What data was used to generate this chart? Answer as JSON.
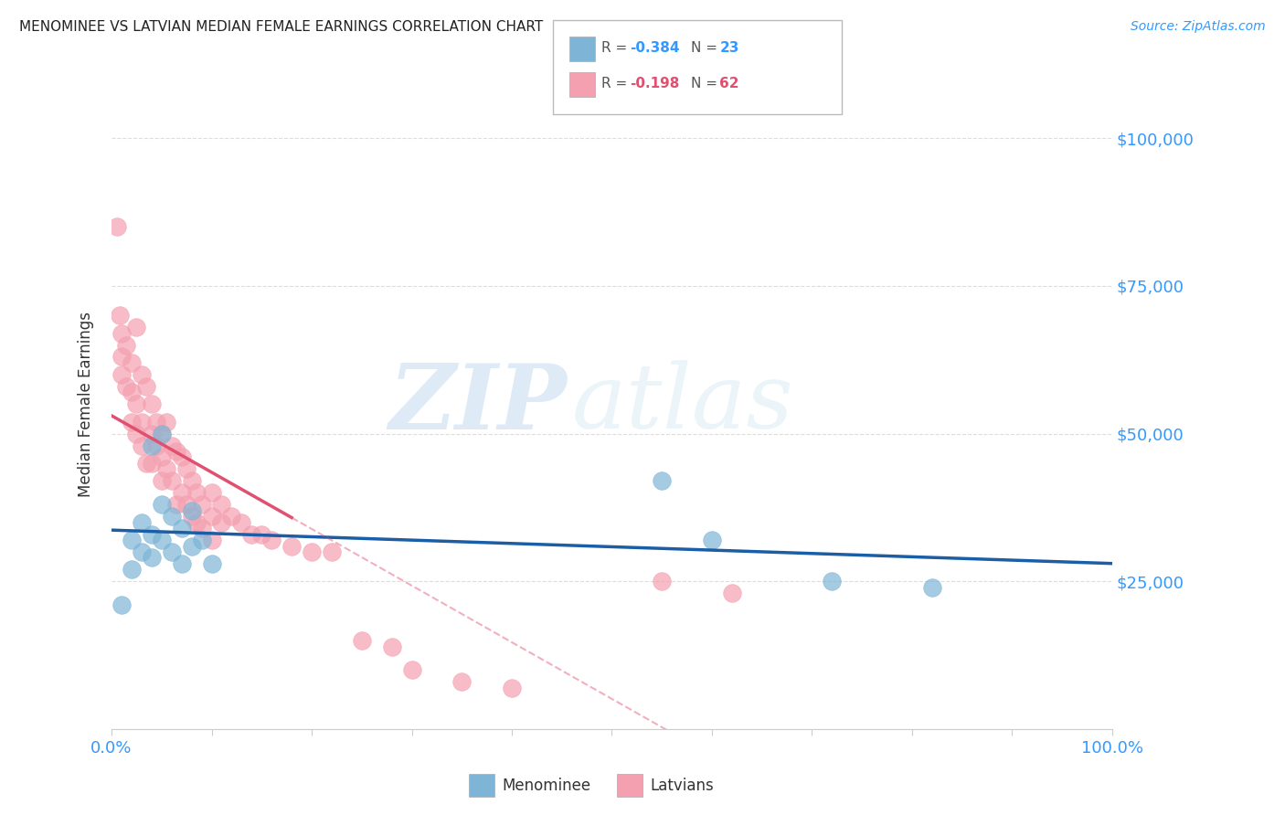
{
  "title": "MENOMINEE VS LATVIAN MEDIAN FEMALE EARNINGS CORRELATION CHART",
  "source": "Source: ZipAtlas.com",
  "ylabel": "Median Female Earnings",
  "watermark_zip": "ZIP",
  "watermark_atlas": "atlas",
  "r_menominee": -0.384,
  "n_menominee": 23,
  "r_latvians": -0.198,
  "n_latvians": 62,
  "xlim": [
    0.0,
    1.0
  ],
  "ylim": [
    0,
    110000
  ],
  "yticks": [
    0,
    25000,
    50000,
    75000,
    100000
  ],
  "ytick_labels": [
    "",
    "$25,000",
    "$50,000",
    "$75,000",
    "$100,000"
  ],
  "color_menominee": "#7EB5D6",
  "color_latvians": "#F4A0B0",
  "line_color_menominee": "#1B5EA6",
  "line_color_latvians": "#E05070",
  "background_color": "#FFFFFF",
  "grid_color": "#DDDDDD",
  "menominee_x": [
    0.01,
    0.02,
    0.02,
    0.03,
    0.03,
    0.04,
    0.04,
    0.04,
    0.05,
    0.05,
    0.05,
    0.06,
    0.06,
    0.07,
    0.07,
    0.08,
    0.08,
    0.09,
    0.1,
    0.55,
    0.6,
    0.72,
    0.82
  ],
  "menominee_y": [
    21000,
    32000,
    27000,
    35000,
    30000,
    48000,
    33000,
    29000,
    50000,
    38000,
    32000,
    36000,
    30000,
    34000,
    28000,
    37000,
    31000,
    32000,
    28000,
    42000,
    32000,
    25000,
    24000
  ],
  "latvians_x": [
    0.005,
    0.008,
    0.01,
    0.01,
    0.01,
    0.015,
    0.015,
    0.02,
    0.02,
    0.02,
    0.025,
    0.025,
    0.025,
    0.03,
    0.03,
    0.03,
    0.035,
    0.035,
    0.04,
    0.04,
    0.04,
    0.045,
    0.045,
    0.05,
    0.05,
    0.05,
    0.055,
    0.055,
    0.06,
    0.06,
    0.065,
    0.065,
    0.07,
    0.07,
    0.075,
    0.075,
    0.08,
    0.08,
    0.085,
    0.085,
    0.09,
    0.09,
    0.1,
    0.1,
    0.1,
    0.11,
    0.11,
    0.12,
    0.13,
    0.14,
    0.15,
    0.16,
    0.18,
    0.2,
    0.22,
    0.25,
    0.28,
    0.3,
    0.35,
    0.4,
    0.55,
    0.62
  ],
  "latvians_y": [
    85000,
    70000,
    67000,
    63000,
    60000,
    65000,
    58000,
    62000,
    57000,
    52000,
    68000,
    55000,
    50000,
    60000,
    52000,
    48000,
    58000,
    45000,
    55000,
    50000,
    45000,
    52000,
    48000,
    50000,
    46000,
    42000,
    52000,
    44000,
    48000,
    42000,
    47000,
    38000,
    46000,
    40000,
    44000,
    38000,
    42000,
    36000,
    40000,
    35000,
    38000,
    34000,
    40000,
    36000,
    32000,
    38000,
    35000,
    36000,
    35000,
    33000,
    33000,
    32000,
    31000,
    30000,
    30000,
    15000,
    14000,
    10000,
    8000,
    7000,
    25000,
    23000
  ]
}
